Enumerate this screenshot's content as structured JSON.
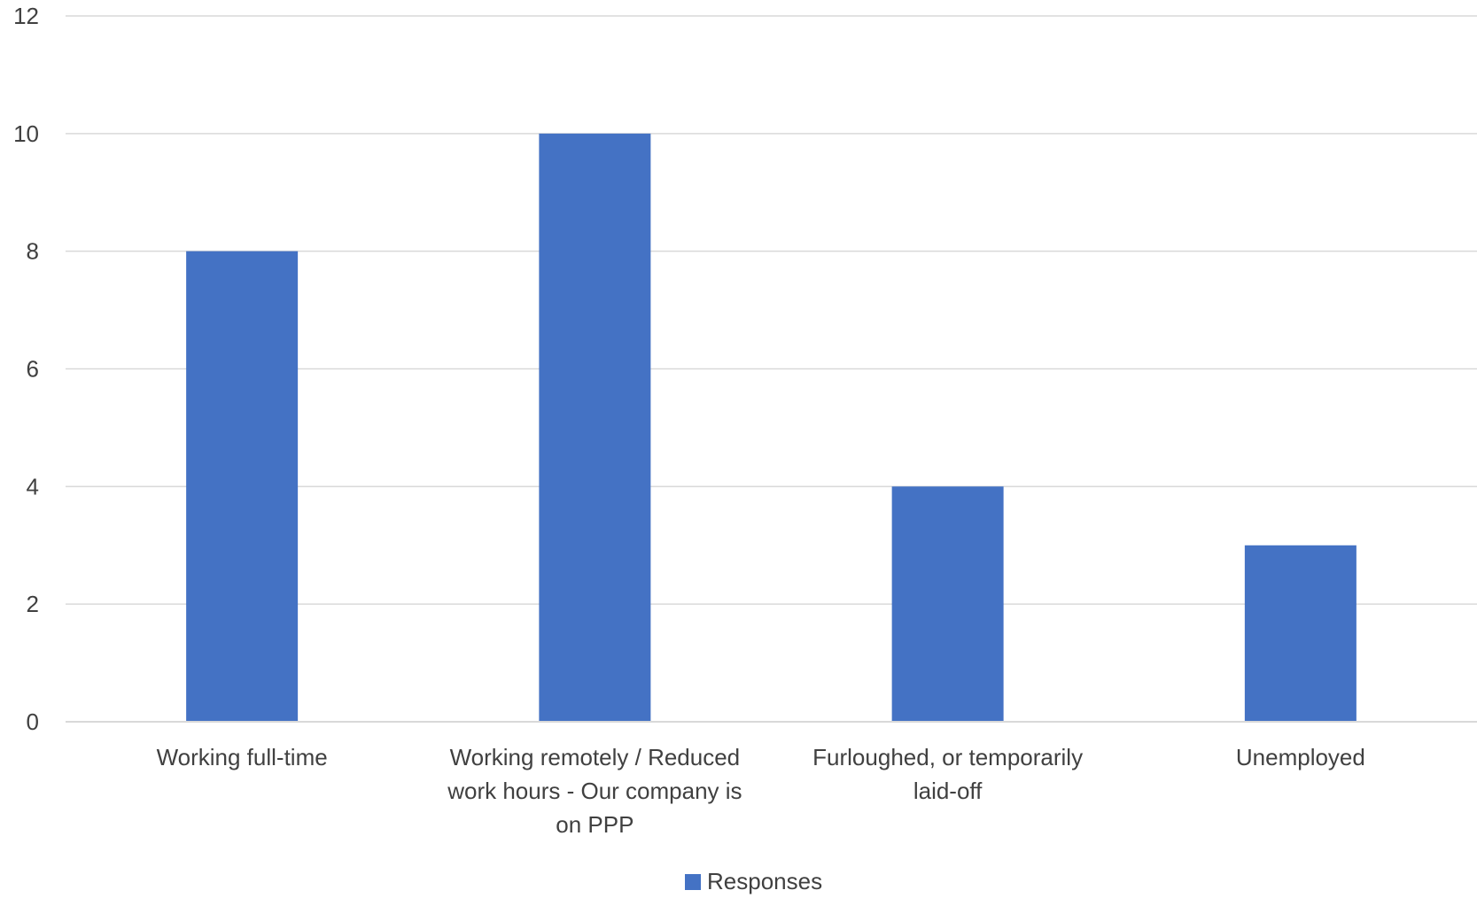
{
  "chart_data": {
    "type": "bar",
    "categories": [
      [
        "Working full-time"
      ],
      [
        "Working remotely / Reduced",
        "work hours - Our company is",
        "on PPP"
      ],
      [
        "Furloughed, or temporarily",
        "laid-off"
      ],
      [
        "Unemployed"
      ]
    ],
    "series": [
      {
        "name": "Responses",
        "values": [
          8,
          10,
          4,
          3
        ],
        "color": "#4472c4"
      }
    ],
    "ylim": [
      0,
      12
    ],
    "yticks": [
      0,
      2,
      4,
      6,
      8,
      10,
      12
    ],
    "grid": true,
    "legend": "bottom-center"
  }
}
